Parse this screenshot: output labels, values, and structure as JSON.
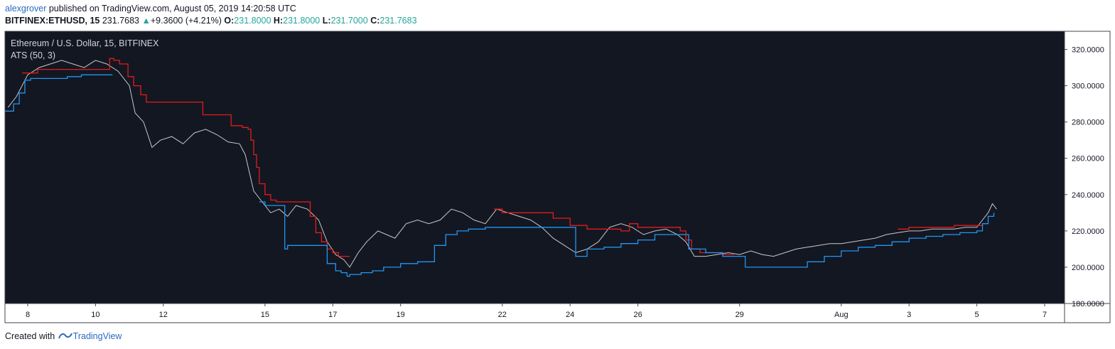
{
  "header": {
    "author": "alexgrover",
    "published_text": "published on TradingView.com, August 05, 2019 14:20:58 UTC",
    "symbol": "BITFINEX:ETHUSD, 15",
    "last": "231.7683",
    "change": "+9.3600 (+4.21%)",
    "open_label": "O:",
    "open": "231.8000",
    "high_label": "H:",
    "high": "231.8000",
    "low_label": "L:",
    "low": "231.7000",
    "close_label": "C:",
    "close": "231.7683"
  },
  "chart_overlay": {
    "title": "Ethereum / U.S. Dollar, 15, BITFINEX",
    "indicator": "ATS (50, 3)"
  },
  "footer": {
    "created_with": "Created with",
    "brand": "TradingView"
  },
  "colors": {
    "background": "#131722",
    "price": "#c8c8c8",
    "ats_resistance": "#e31b1b",
    "ats_support": "#2196f3",
    "axis_text": "#131722"
  },
  "chart_data": {
    "type": "line",
    "x_unit": "date",
    "y_unit": "USD",
    "ylim": [
      180,
      330
    ],
    "y_ticks": [
      "180.0000",
      "200.0000",
      "220.0000",
      "240.0000",
      "260.0000",
      "280.0000",
      "300.0000",
      "320.0000"
    ],
    "x_ticks": [
      "8",
      "10",
      "12",
      "15",
      "17",
      "19",
      "22",
      "24",
      "26",
      "29",
      "Aug",
      "3",
      "5",
      "7"
    ],
    "x_tick_dates": [
      "2019-07-08",
      "2019-07-10",
      "2019-07-12",
      "2019-07-15",
      "2019-07-17",
      "2019-07-19",
      "2019-07-22",
      "2019-07-24",
      "2019-07-26",
      "2019-07-29",
      "2019-08-01",
      "2019-08-03",
      "2019-08-05",
      "2019-08-07"
    ],
    "grid": false,
    "series": [
      {
        "name": "ETHUSD",
        "color": "#c8c8c8",
        "x": [
          "2019-07-07 10:00",
          "2019-07-07 16:00",
          "2019-07-08 00:00",
          "2019-07-08 08:00",
          "2019-07-08 16:00",
          "2019-07-09 00:00",
          "2019-07-09 08:00",
          "2019-07-09 16:00",
          "2019-07-10 00:00",
          "2019-07-10 08:00",
          "2019-07-10 16:00",
          "2019-07-11 00:00",
          "2019-07-11 04:00",
          "2019-07-11 10:00",
          "2019-07-11 16:00",
          "2019-07-11 22:00",
          "2019-07-12 06:00",
          "2019-07-12 14:00",
          "2019-07-12 22:00",
          "2019-07-13 06:00",
          "2019-07-13 14:00",
          "2019-07-13 22:00",
          "2019-07-14 06:00",
          "2019-07-14 10:00",
          "2019-07-14 16:00",
          "2019-07-14 22:00",
          "2019-07-15 04:00",
          "2019-07-15 10:00",
          "2019-07-15 16:00",
          "2019-07-15 22:00",
          "2019-07-16 06:00",
          "2019-07-16 14:00",
          "2019-07-16 20:00",
          "2019-07-17 02:00",
          "2019-07-17 08:00",
          "2019-07-17 12:00",
          "2019-07-17 18:00",
          "2019-07-18 00:00",
          "2019-07-18 08:00",
          "2019-07-18 14:00",
          "2019-07-18 20:00",
          "2019-07-19 04:00",
          "2019-07-19 12:00",
          "2019-07-19 20:00",
          "2019-07-20 04:00",
          "2019-07-20 12:00",
          "2019-07-20 20:00",
          "2019-07-21 04:00",
          "2019-07-21 12:00",
          "2019-07-21 20:00",
          "2019-07-22 04:00",
          "2019-07-22 12:00",
          "2019-07-22 20:00",
          "2019-07-23 04:00",
          "2019-07-23 12:00",
          "2019-07-23 20:00",
          "2019-07-24 04:00",
          "2019-07-24 12:00",
          "2019-07-24 20:00",
          "2019-07-25 04:00",
          "2019-07-25 12:00",
          "2019-07-25 20:00",
          "2019-07-26 04:00",
          "2019-07-26 12:00",
          "2019-07-26 20:00",
          "2019-07-27 04:00",
          "2019-07-27 10:00",
          "2019-07-27 16:00",
          "2019-07-28 00:00",
          "2019-07-28 08:00",
          "2019-07-28 16:00",
          "2019-07-29 00:00",
          "2019-07-29 08:00",
          "2019-07-29 16:00",
          "2019-07-30 00:00",
          "2019-07-30 08:00",
          "2019-07-30 16:00",
          "2019-07-31 00:00",
          "2019-07-31 08:00",
          "2019-07-31 16:00",
          "2019-08-01 00:00",
          "2019-08-01 08:00",
          "2019-08-01 16:00",
          "2019-08-02 00:00",
          "2019-08-02 08:00",
          "2019-08-02 16:00",
          "2019-08-03 00:00",
          "2019-08-03 08:00",
          "2019-08-03 16:00",
          "2019-08-04 00:00",
          "2019-08-04 08:00",
          "2019-08-04 16:00",
          "2019-08-05 00:00",
          "2019-08-05 04:00",
          "2019-08-05 08:00",
          "2019-08-05 11:00",
          "2019-08-05 14:00"
        ],
        "values": [
          288,
          294,
          306,
          310,
          312,
          314,
          312,
          310,
          314,
          312,
          308,
          300,
          285,
          280,
          266,
          270,
          272,
          268,
          274,
          276,
          273,
          269,
          268,
          262,
          242,
          236,
          230,
          232,
          228,
          234,
          232,
          226,
          214,
          207,
          204,
          200,
          208,
          214,
          220,
          218,
          216,
          224,
          226,
          224,
          226,
          232,
          230,
          226,
          224,
          232,
          230,
          228,
          226,
          222,
          216,
          212,
          208,
          210,
          214,
          222,
          224,
          222,
          218,
          220,
          221,
          218,
          214,
          206,
          206,
          207,
          208,
          207,
          209,
          207,
          206,
          208,
          210,
          211,
          212,
          213,
          213,
          214,
          215,
          216,
          218,
          219,
          220,
          220,
          221,
          221,
          221,
          222,
          222,
          226,
          230,
          235,
          232
        ]
      },
      {
        "name": "ATS resistance",
        "color": "#e31b1b",
        "x": [
          "2019-07-07 20:00",
          "2019-07-08 07:00",
          "2019-07-08 16:00",
          "2019-07-09 14:00",
          "2019-07-10 10:00",
          "2019-07-10 13:00",
          "2019-07-10 17:00",
          "2019-07-10 23:00",
          "2019-07-11 03:00",
          "2019-07-11 08:00",
          "2019-07-11 12:00",
          "2019-07-13 04:00",
          "2019-07-13 16:00",
          "2019-07-14 00:00",
          "2019-07-14 08:00",
          "2019-07-14 12:00",
          "2019-07-14 14:00",
          "2019-07-14 16:00",
          "2019-07-14 18:00",
          "2019-07-14 20:00",
          "2019-07-15 00:00",
          "2019-07-15 04:00",
          "2019-07-15 08:00",
          "2019-07-15 12:00",
          "2019-07-16 08:00",
          "2019-07-16 12:00",
          "2019-07-16 16:00",
          "2019-07-16 20:00",
          "2019-07-17 00:00",
          "2019-07-17 04:00",
          "2019-07-17 08:00",
          "2019-07-17 12:00"
        ],
        "values": [
          307,
          309,
          309,
          309,
          315,
          314,
          312,
          305,
          300,
          295,
          291,
          284,
          284,
          278,
          277,
          276,
          270,
          262,
          255,
          246,
          240,
          237,
          236,
          236,
          228,
          219,
          214,
          210,
          208,
          206,
          206,
          206
        ],
        "x2": [
          "2019-07-21 18:00",
          "2019-07-22 00:00",
          "2019-07-23 00:00",
          "2019-07-23 12:00",
          "2019-07-24 00:00",
          "2019-07-24 12:00",
          "2019-07-24 16:00",
          "2019-07-25 12:00",
          "2019-07-25 18:00",
          "2019-07-26 00:00",
          "2019-07-26 12:00",
          "2019-07-27 00:00",
          "2019-07-27 06:00",
          "2019-07-27 10:00",
          "2019-07-27 14:00",
          "2019-07-27 20:00",
          "2019-07-28 04:00",
          "2019-07-28 12:00",
          "2019-07-28 20:00"
        ],
        "values2": [
          232,
          230,
          230,
          227,
          223,
          221,
          221,
          220,
          224,
          222,
          222,
          222,
          220,
          215,
          210,
          208,
          208,
          207,
          207
        ],
        "x3": [
          "2019-08-02 16:00",
          "2019-08-03 00:00",
          "2019-08-03 16:00",
          "2019-08-04 00:00",
          "2019-08-04 08:00",
          "2019-08-04 16:00",
          "2019-08-05 00:00",
          "2019-08-05 04:00"
        ],
        "values3": [
          221,
          222,
          222,
          222,
          223,
          223,
          223,
          223
        ]
      },
      {
        "name": "ATS support",
        "color": "#2196f3",
        "x": [
          "2019-07-07 08:00",
          "2019-07-07 14:00",
          "2019-07-07 18:00",
          "2019-07-07 22:00",
          "2019-07-08 02:00",
          "2019-07-08 12:00",
          "2019-07-09 04:00",
          "2019-07-09 14:00",
          "2019-07-10 06:00",
          "2019-07-10 12:00"
        ],
        "values": [
          286,
          290,
          296,
          303,
          304,
          304,
          305,
          306,
          306,
          306
        ],
        "x2": [
          "2019-07-14 20:00",
          "2019-07-15 00:00",
          "2019-07-15 12:00",
          "2019-07-15 14:00",
          "2019-07-15 16:00",
          "2019-07-16 12:00",
          "2019-07-16 20:00",
          "2019-07-17 02:00",
          "2019-07-17 06:00",
          "2019-07-17 10:00"
        ],
        "values2": [
          236,
          234,
          234,
          210,
          212,
          212,
          202,
          198,
          197,
          195
        ],
        "x3": [
          "2019-07-17 10:00",
          "2019-07-17 12:00",
          "2019-07-17 20:00",
          "2019-07-18 04:00",
          "2019-07-18 12:00",
          "2019-07-19 00:00",
          "2019-07-19 12:00",
          "2019-07-20 00:00",
          "2019-07-20 08:00",
          "2019-07-20 16:00",
          "2019-07-21 00:00",
          "2019-07-21 12:00",
          "2019-07-21 20:00",
          "2019-07-24 04:00",
          "2019-07-24 12:00",
          "2019-07-25 00:00",
          "2019-07-25 12:00",
          "2019-07-26 00:00",
          "2019-07-26 12:00",
          "2019-07-27 00:00",
          "2019-07-27 12:00",
          "2019-07-28 00:00",
          "2019-07-28 12:00",
          "2019-07-29 00:00"
        ],
        "values3": [
          195,
          196,
          197,
          198,
          200,
          202,
          203,
          212,
          218,
          220,
          221,
          222,
          222,
          206,
          210,
          211,
          213,
          215,
          218,
          218,
          210,
          208,
          206,
          206
        ],
        "x4": [
          "2019-07-29 00:00",
          "2019-07-29 04:00",
          "2019-07-30 00:00",
          "2019-07-30 12:00",
          "2019-07-31 00:00",
          "2019-07-31 12:00",
          "2019-08-01 00:00",
          "2019-08-01 12:00",
          "2019-08-02 00:00",
          "2019-08-02 12:00",
          "2019-08-03 00:00",
          "2019-08-03 12:00",
          "2019-08-04 00:00",
          "2019-08-04 12:00",
          "2019-08-05 00:00",
          "2019-08-05 04:00",
          "2019-08-05 08:00",
          "2019-08-05 12:00"
        ],
        "values4": [
          206,
          200,
          200,
          200,
          203,
          206,
          209,
          211,
          212,
          214,
          216,
          217,
          218,
          219,
          220,
          224,
          228,
          230
        ]
      }
    ]
  }
}
